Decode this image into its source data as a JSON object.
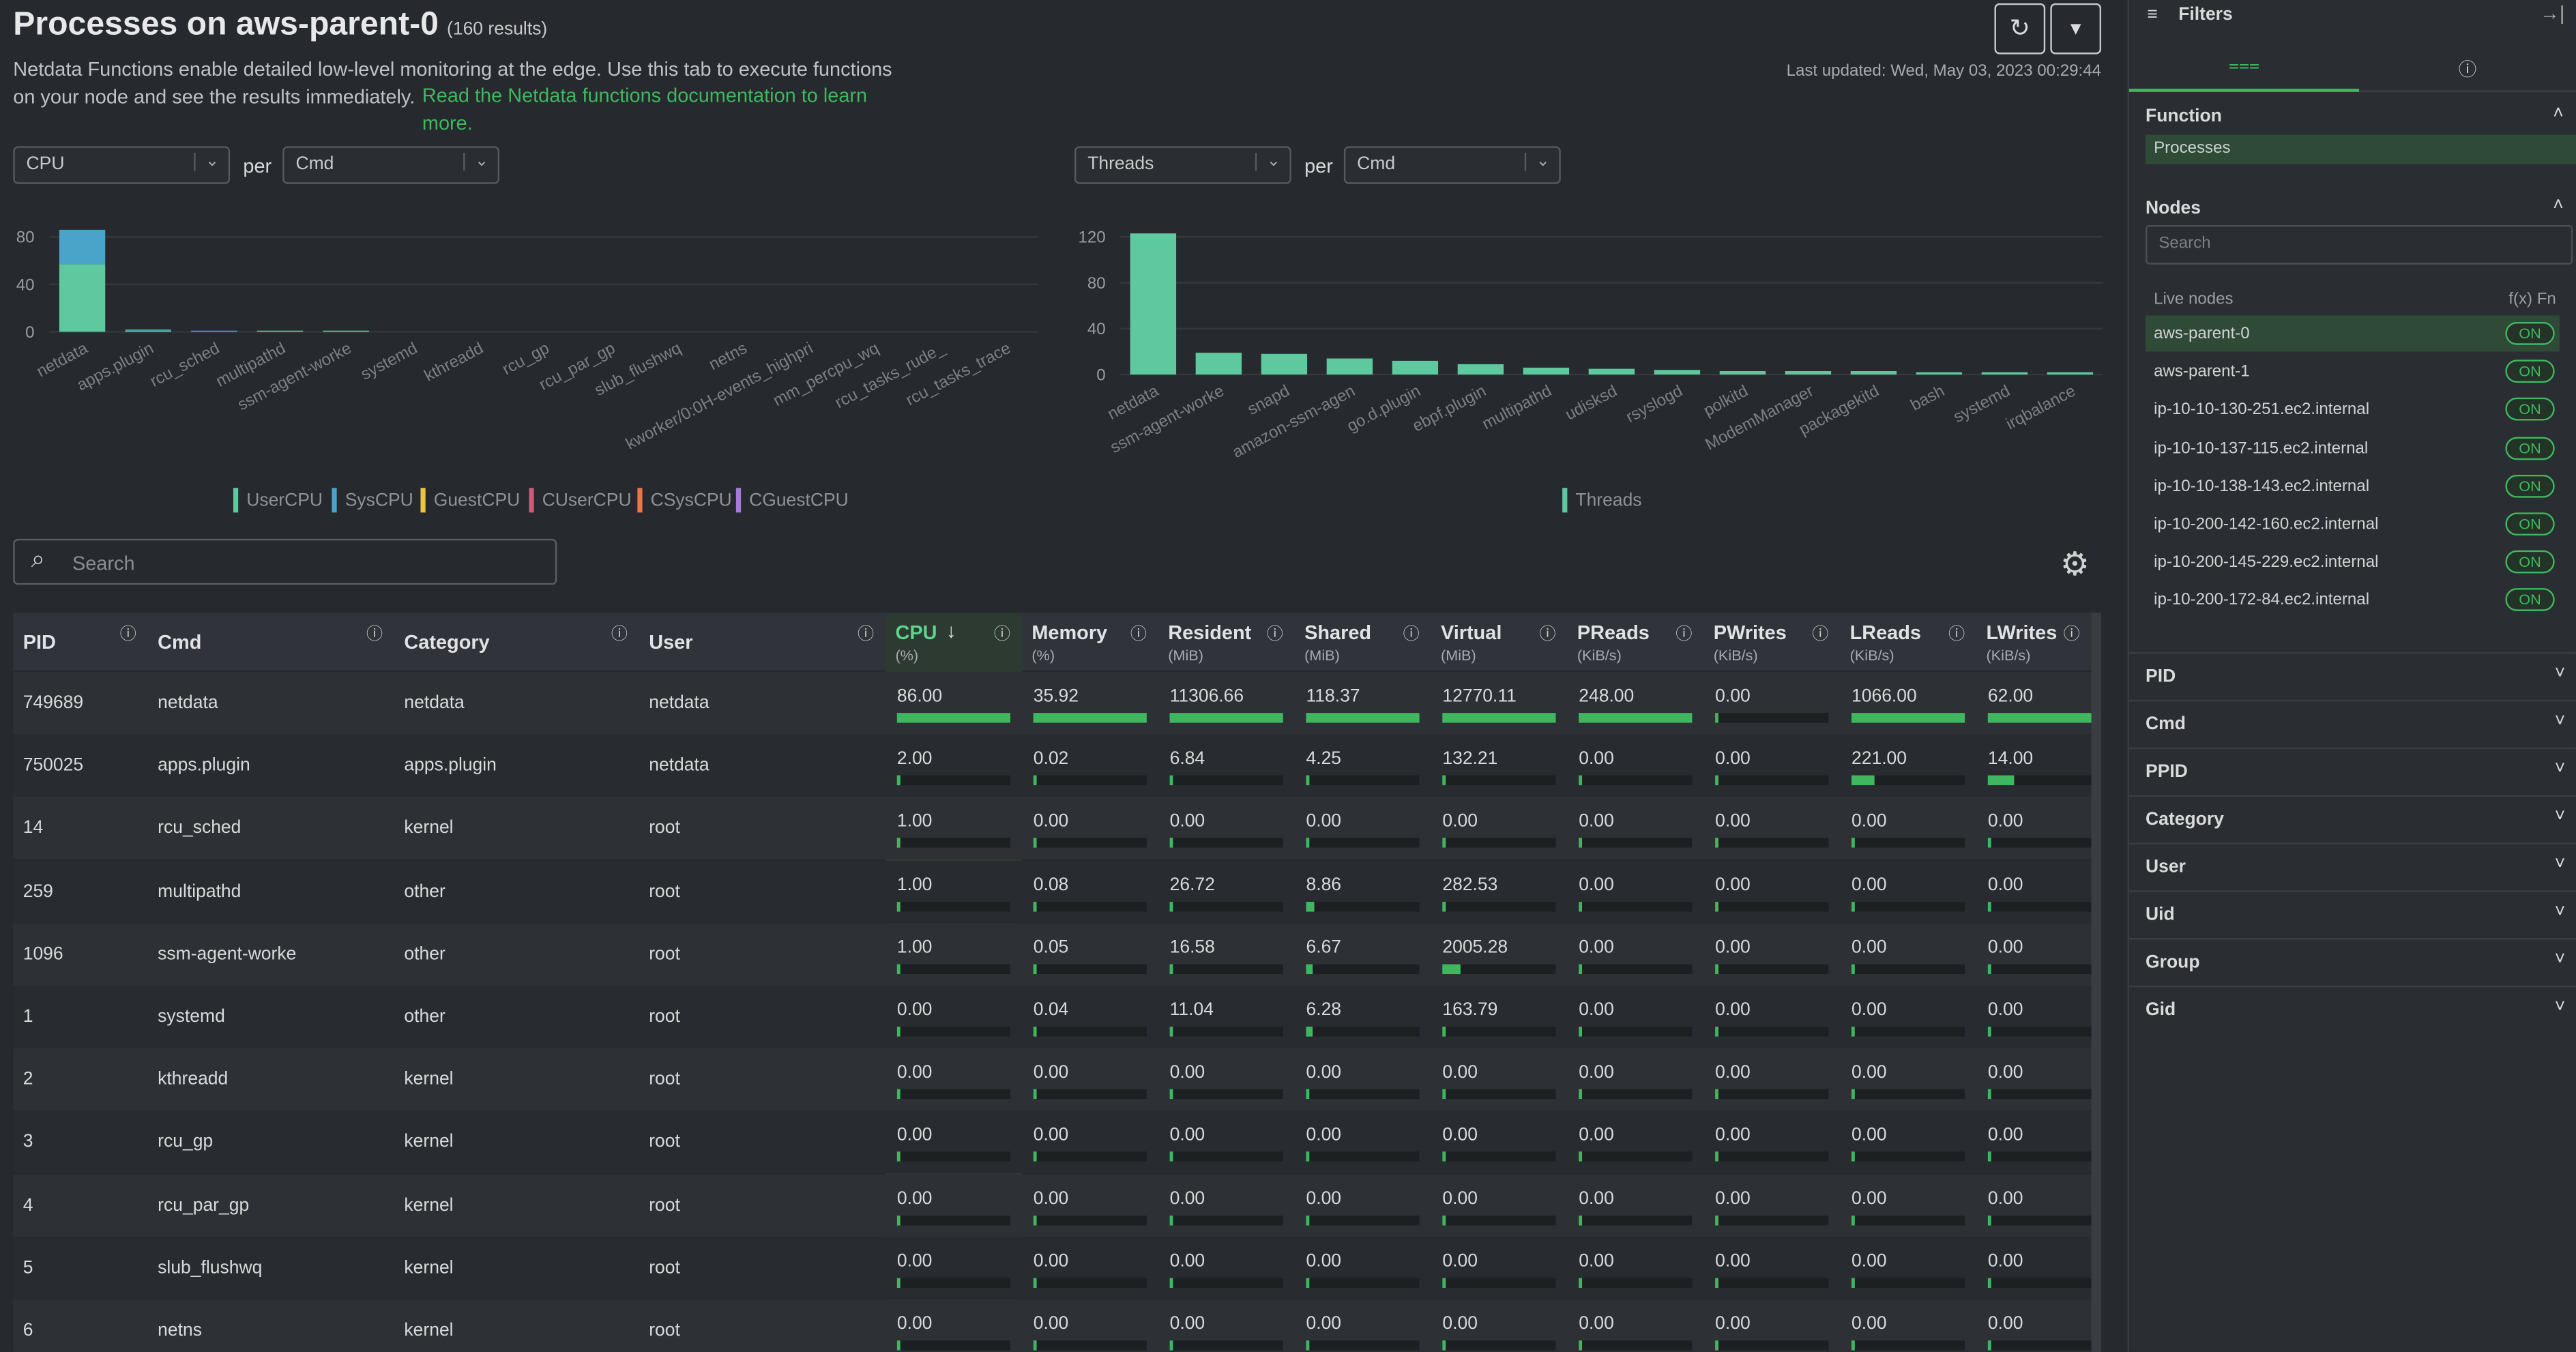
{
  "header": {
    "title": "Processes on aws-parent-0",
    "count": "(160 results)",
    "description": "Netdata Functions enable detailed low-level monitoring at the edge. Use this tab to execute functions on your node and see the results immediately.",
    "doc_link": "Read the Netdata functions documentation to learn more.",
    "last_updated": "Last updated: Wed, May 03, 2023 00:29:44"
  },
  "controls": {
    "left_metric": "CPU",
    "left_per": "per",
    "left_group": "Cmd",
    "right_metric": "Threads",
    "right_per": "per",
    "right_group": "Cmd"
  },
  "chart_data": [
    {
      "type": "stacked-bar",
      "categories": [
        "netdata",
        "apps.plugin",
        "rcu_sched",
        "multipathd",
        "ssm-agent-worke",
        "systemd",
        "kthreadd",
        "rcu_gp",
        "rcu_par_gp",
        "slub_flushwq",
        "netns",
        "kworker/0:0H-events_highpri",
        "mm_percpu_wq",
        "rcu_tasks_rude_",
        "rcu_tasks_trace"
      ],
      "series": [
        {
          "name": "UserCPU",
          "color": "#5ec99e",
          "values": [
            57,
            1,
            0,
            1,
            1,
            0,
            0,
            0,
            0,
            0,
            0,
            0,
            0,
            0,
            0
          ]
        },
        {
          "name": "SysCPU",
          "color": "#4aa3c8",
          "values": [
            29,
            1,
            1,
            0,
            0,
            0,
            0,
            0,
            0,
            0,
            0,
            0,
            0,
            0,
            0
          ]
        },
        {
          "name": "GuestCPU",
          "color": "#e8c547",
          "values": [
            0,
            0,
            0,
            0,
            0,
            0,
            0,
            0,
            0,
            0,
            0,
            0,
            0,
            0,
            0
          ]
        },
        {
          "name": "CUserCPU",
          "color": "#d9547b",
          "values": [
            0,
            0,
            0,
            0,
            0,
            0,
            0,
            0,
            0,
            0,
            0,
            0,
            0,
            0,
            0
          ]
        },
        {
          "name": "CSysCPU",
          "color": "#e8764a",
          "values": [
            0,
            0,
            0,
            0,
            0,
            0,
            0,
            0,
            0,
            0,
            0,
            0,
            0,
            0,
            0
          ]
        },
        {
          "name": "CGuestCPU",
          "color": "#a77bd8",
          "values": [
            0,
            0,
            0,
            0,
            0,
            0,
            0,
            0,
            0,
            0,
            0,
            0,
            0,
            0,
            0
          ]
        }
      ],
      "ylim": [
        0,
        90
      ],
      "yticks": [
        0,
        40,
        80
      ],
      "grid": true
    },
    {
      "type": "stacked-bar",
      "categories": [
        "netdata",
        "ssm-agent-worke",
        "snapd",
        "amazon-ssm-agen",
        "go.d.plugin",
        "ebpf.plugin",
        "multipathd",
        "udisksd",
        "rsyslogd",
        "polkitd",
        "ModemManager",
        "packagekitd",
        "bash",
        "systemd",
        "irqbalance"
      ],
      "series": [
        {
          "name": "Threads",
          "color": "#5ec99e",
          "values": [
            123,
            19,
            18,
            14,
            12,
            9,
            6,
            5,
            4,
            3,
            3,
            3,
            2,
            2,
            2
          ]
        }
      ],
      "ylim": [
        0,
        126
      ],
      "yticks": [
        0,
        40,
        80,
        120
      ],
      "grid": true
    }
  ],
  "search_placeholder": "Search",
  "table": {
    "columns": [
      {
        "name": "PID"
      },
      {
        "name": "Cmd"
      },
      {
        "name": "Category"
      },
      {
        "name": "User"
      },
      {
        "name": "CPU",
        "unit": "(%)"
      },
      {
        "name": "Memory",
        "unit": "(%)"
      },
      {
        "name": "Resident",
        "unit": "(MiB)"
      },
      {
        "name": "Shared",
        "unit": "(MiB)"
      },
      {
        "name": "Virtual",
        "unit": "(MiB)"
      },
      {
        "name": "PReads",
        "unit": "(KiB/s)"
      },
      {
        "name": "PWrites",
        "unit": "(KiB/s)"
      },
      {
        "name": "LReads",
        "unit": "(KiB/s)"
      },
      {
        "name": "LWrites",
        "unit": "(KiB/s)"
      }
    ],
    "rows": [
      [
        "749689",
        "netdata",
        "netdata",
        "netdata",
        "86.00",
        "35.92",
        "11306.66",
        "118.37",
        "12770.11",
        "248.00",
        "0.00",
        "1066.00",
        "62.00"
      ],
      [
        "750025",
        "apps.plugin",
        "apps.plugin",
        "netdata",
        "2.00",
        "0.02",
        "6.84",
        "4.25",
        "132.21",
        "0.00",
        "0.00",
        "221.00",
        "14.00"
      ],
      [
        "14",
        "rcu_sched",
        "kernel",
        "root",
        "1.00",
        "0.00",
        "0.00",
        "0.00",
        "0.00",
        "0.00",
        "0.00",
        "0.00",
        "0.00"
      ],
      [
        "259",
        "multipathd",
        "other",
        "root",
        "1.00",
        "0.08",
        "26.72",
        "8.86",
        "282.53",
        "0.00",
        "0.00",
        "0.00",
        "0.00"
      ],
      [
        "1096",
        "ssm-agent-worke",
        "other",
        "root",
        "1.00",
        "0.05",
        "16.58",
        "6.67",
        "2005.28",
        "0.00",
        "0.00",
        "0.00",
        "0.00"
      ],
      [
        "1",
        "systemd",
        "other",
        "root",
        "0.00",
        "0.04",
        "11.04",
        "6.28",
        "163.79",
        "0.00",
        "0.00",
        "0.00",
        "0.00"
      ],
      [
        "2",
        "kthreadd",
        "kernel",
        "root",
        "0.00",
        "0.00",
        "0.00",
        "0.00",
        "0.00",
        "0.00",
        "0.00",
        "0.00",
        "0.00"
      ],
      [
        "3",
        "rcu_gp",
        "kernel",
        "root",
        "0.00",
        "0.00",
        "0.00",
        "0.00",
        "0.00",
        "0.00",
        "0.00",
        "0.00",
        "0.00"
      ],
      [
        "4",
        "rcu_par_gp",
        "kernel",
        "root",
        "0.00",
        "0.00",
        "0.00",
        "0.00",
        "0.00",
        "0.00",
        "0.00",
        "0.00",
        "0.00"
      ],
      [
        "5",
        "slub_flushwq",
        "kernel",
        "root",
        "0.00",
        "0.00",
        "0.00",
        "0.00",
        "0.00",
        "0.00",
        "0.00",
        "0.00",
        "0.00"
      ],
      [
        "6",
        "netns",
        "kernel",
        "root",
        "0.00",
        "0.00",
        "0.00",
        "0.00",
        "0.00",
        "0.00",
        "0.00",
        "0.00",
        "0.00"
      ]
    ]
  },
  "filters": {
    "title": "Filters",
    "function_heading": "Function",
    "function_value": "Processes",
    "nodes_heading": "Nodes",
    "nodes_search": "Search",
    "live_nodes": "Live nodes",
    "fn_label": "f(x) Fn",
    "nodes": [
      {
        "name": "aws-parent-0",
        "status": "ON"
      },
      {
        "name": "aws-parent-1",
        "status": "ON"
      },
      {
        "name": "ip-10-10-130-251.ec2.internal",
        "status": "ON"
      },
      {
        "name": "ip-10-10-137-115.ec2.internal",
        "status": "ON"
      },
      {
        "name": "ip-10-10-138-143.ec2.internal",
        "status": "ON"
      },
      {
        "name": "ip-10-200-142-160.ec2.internal",
        "status": "ON"
      },
      {
        "name": "ip-10-200-145-229.ec2.internal",
        "status": "ON"
      },
      {
        "name": "ip-10-200-172-84.ec2.internal",
        "status": "ON"
      }
    ],
    "sections": [
      "PID",
      "Cmd",
      "PPID",
      "Category",
      "User",
      "Uid",
      "Group",
      "Gid"
    ]
  }
}
